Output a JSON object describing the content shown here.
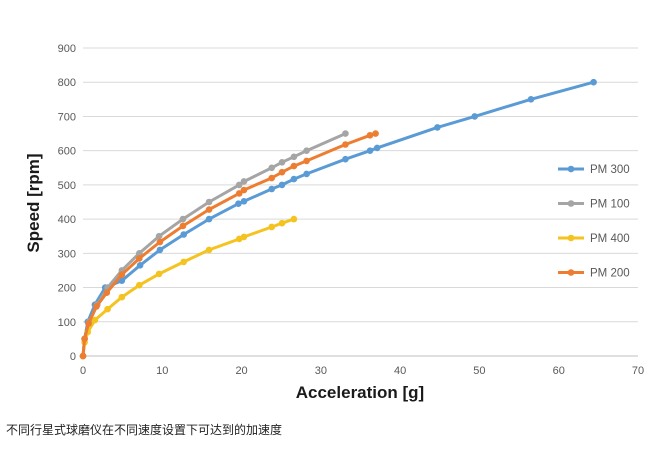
{
  "caption": "不同行星式球磨仪在不同速度设置下可达到的加速度",
  "chart_data": {
    "type": "line",
    "xlabel": "Acceleration [g]",
    "ylabel": "Speed [rpm]",
    "xlim": [
      0,
      70
    ],
    "ylim": [
      0,
      900
    ],
    "x_ticks": [
      0,
      10,
      20,
      30,
      40,
      50,
      60,
      70
    ],
    "y_ticks": [
      0,
      100,
      200,
      300,
      400,
      500,
      600,
      700,
      800,
      900
    ],
    "grid": "horizontal",
    "legend_position": "right",
    "series": [
      {
        "name": "PM 300",
        "color": "#5b9bd5",
        "points": [
          [
            0,
            0
          ],
          [
            0.2,
            50
          ],
          [
            0.6,
            100
          ],
          [
            1.5,
            150
          ],
          [
            2.8,
            200
          ],
          [
            4.9,
            220
          ],
          [
            7.2,
            265
          ],
          [
            9.7,
            310
          ],
          [
            12.7,
            355
          ],
          [
            15.9,
            400
          ],
          [
            19.6,
            445
          ],
          [
            20.3,
            452
          ],
          [
            23.8,
            488
          ],
          [
            25.1,
            500
          ],
          [
            26.6,
            517
          ],
          [
            28.2,
            532
          ],
          [
            33.1,
            575
          ],
          [
            36.2,
            600
          ],
          [
            37.1,
            608
          ],
          [
            44.7,
            668
          ],
          [
            49.4,
            700
          ],
          [
            56.5,
            750
          ],
          [
            64.4,
            800
          ]
        ]
      },
      {
        "name": "PM 100",
        "color": "#a5a5a5",
        "points": [
          [
            0,
            0
          ],
          [
            0.2,
            50
          ],
          [
            0.8,
            100
          ],
          [
            1.8,
            150
          ],
          [
            3.1,
            200
          ],
          [
            4.9,
            250
          ],
          [
            7.1,
            300
          ],
          [
            9.6,
            350
          ],
          [
            12.6,
            400
          ],
          [
            15.9,
            450
          ],
          [
            19.7,
            500
          ],
          [
            20.3,
            510
          ],
          [
            23.8,
            550
          ],
          [
            25.1,
            566
          ],
          [
            26.6,
            582
          ],
          [
            28.2,
            600
          ],
          [
            33.1,
            650
          ]
        ]
      },
      {
        "name": "PM 400",
        "color": "#f5c320",
        "points": [
          [
            0,
            0
          ],
          [
            0.2,
            40
          ],
          [
            0.6,
            70
          ],
          [
            1.5,
            105
          ],
          [
            3.1,
            137
          ],
          [
            4.9,
            172
          ],
          [
            7.1,
            207
          ],
          [
            9.6,
            240
          ],
          [
            12.7,
            275
          ],
          [
            15.9,
            310
          ],
          [
            19.7,
            342
          ],
          [
            20.3,
            348
          ],
          [
            23.8,
            377
          ],
          [
            25.1,
            388
          ],
          [
            26.6,
            400
          ]
        ]
      },
      {
        "name": "PM 200",
        "color": "#ed7d31",
        "points": [
          [
            0,
            0
          ],
          [
            0.2,
            50
          ],
          [
            0.7,
            95
          ],
          [
            1.7,
            145
          ],
          [
            3.0,
            185
          ],
          [
            4.9,
            238
          ],
          [
            7.1,
            285
          ],
          [
            9.7,
            333
          ],
          [
            12.6,
            380
          ],
          [
            15.9,
            428
          ],
          [
            19.7,
            475
          ],
          [
            20.3,
            485
          ],
          [
            23.8,
            520
          ],
          [
            25.1,
            537
          ],
          [
            26.6,
            555
          ],
          [
            28.2,
            570
          ],
          [
            33.1,
            618
          ],
          [
            36.2,
            645
          ],
          [
            36.9,
            650
          ]
        ]
      }
    ]
  }
}
